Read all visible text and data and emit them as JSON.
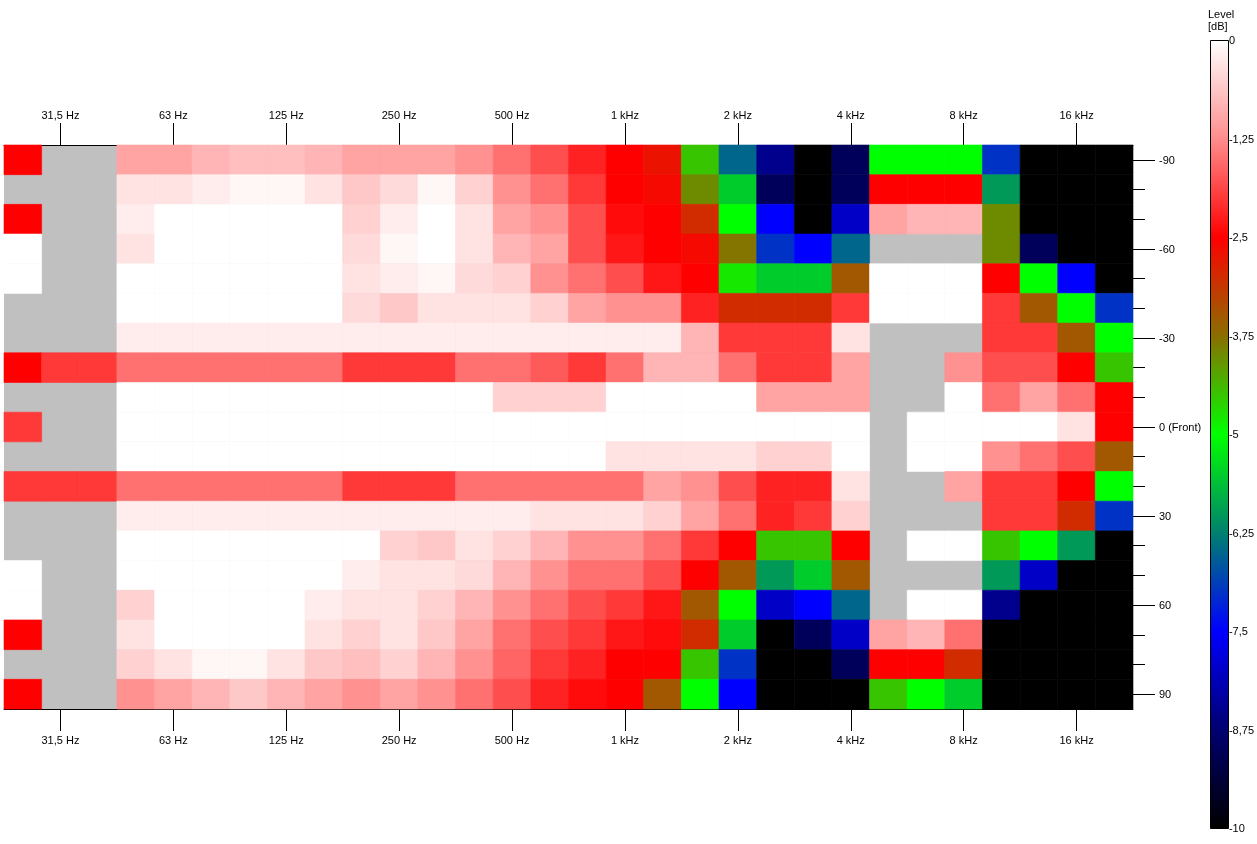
{
  "chart_data": {
    "type": "heatmap",
    "categories": [
      null,
      "31,5 Hz",
      null,
      null,
      "63 Hz",
      null,
      null,
      "125 Hz",
      null,
      null,
      "250 Hz",
      null,
      null,
      "500 Hz",
      null,
      null,
      "1 kHz",
      null,
      null,
      "2 kHz",
      null,
      null,
      "4 kHz",
      null,
      null,
      "8 kHz",
      null,
      null,
      "16 kHz",
      null
    ],
    "y_categories": [
      "-90",
      null,
      null,
      "-60",
      null,
      null,
      "-30",
      null,
      null,
      "0 (Front)",
      null,
      null,
      "30",
      null,
      null,
      "60",
      null,
      null,
      "90"
    ],
    "cells": [
      [
        -2.5,
        null,
        null,
        -1,
        -1,
        -0.8,
        -0.7,
        -0.7,
        -0.8,
        -1,
        -1,
        -1,
        -1.2,
        -1.5,
        -1.8,
        -2.2,
        -2.5,
        -2.7,
        -4.5,
        -6.5,
        -8.5,
        -10,
        -9,
        -5,
        -5,
        -5,
        -7,
        -10,
        -10,
        -10
      ],
      [
        null,
        null,
        null,
        -0.3,
        -0.3,
        -0.2,
        -0.1,
        -0.1,
        -0.3,
        -0.6,
        -0.4,
        -0.1,
        -0.5,
        -1.2,
        -1.5,
        -2,
        -2.5,
        -2.6,
        -4,
        -5.5,
        -9,
        -10,
        -9,
        -2.5,
        -2.5,
        -2.5,
        -6,
        -10,
        -10,
        -10
      ],
      [
        -2.5,
        null,
        null,
        -0.2,
        0,
        0,
        0,
        0,
        0,
        -0.5,
        -0.2,
        0,
        -0.3,
        -1,
        -1.2,
        -1.8,
        -2.4,
        -2.5,
        -3,
        -5,
        -7.5,
        -10,
        -8,
        -1,
        -0.8,
        -0.8,
        -4,
        -10,
        -10,
        -10
      ],
      [
        0,
        null,
        null,
        -0.3,
        0,
        0,
        0,
        0,
        0,
        -0.4,
        -0.1,
        0,
        -0.3,
        -0.8,
        -1,
        -1.8,
        -2.3,
        -2.5,
        -2.6,
        -3.8,
        -7,
        -7.5,
        -6.5,
        null,
        null,
        null,
        -4,
        -9,
        -10,
        -10
      ],
      [
        0,
        null,
        null,
        0,
        0,
        0,
        0,
        0,
        0,
        -0.3,
        -0.2,
        -0.1,
        -0.4,
        -0.5,
        -1.2,
        -1.5,
        -1.8,
        -2.3,
        -2.5,
        -4.8,
        -5.5,
        -5.5,
        -3.5,
        0,
        0,
        0,
        -2.5,
        -5,
        -7.5,
        -10
      ],
      [
        null,
        null,
        null,
        0,
        0,
        0,
        0,
        0,
        0,
        -0.4,
        -0.6,
        -0.3,
        -0.3,
        -0.3,
        -0.5,
        -1,
        -1.2,
        -1.2,
        -2.2,
        -3,
        -3,
        -3,
        -2,
        0,
        0,
        0,
        -2,
        -3.5,
        -5,
        -7
      ],
      [
        null,
        null,
        null,
        -0.2,
        -0.2,
        -0.2,
        -0.2,
        -0.2,
        -0.2,
        -0.2,
        -0.2,
        -0.2,
        -0.2,
        -0.2,
        -0.2,
        -0.2,
        -0.2,
        -0.2,
        -0.8,
        -2,
        -2,
        -2,
        -0.3,
        null,
        null,
        null,
        -2,
        -2,
        -3.5,
        -5
      ],
      [
        -2.5,
        -2,
        -2,
        -1.5,
        -1.5,
        -1.5,
        -1.5,
        -1.5,
        -1.5,
        -2,
        -2,
        -2,
        -1.5,
        -1.5,
        -1.7,
        -2,
        -1.5,
        -0.8,
        -0.8,
        -1.5,
        -2,
        -2,
        -1,
        null,
        null,
        -1.2,
        -1.8,
        -1.8,
        -2.5,
        -4.5
      ],
      [
        null,
        null,
        null,
        0,
        0,
        0,
        0,
        0,
        0,
        0,
        0,
        0,
        0,
        -0.5,
        -0.5,
        -0.5,
        0,
        0,
        0,
        0,
        -1,
        -1,
        -1,
        null,
        null,
        0,
        -1.5,
        -1,
        -1.5,
        -2.5
      ],
      [
        -2,
        null,
        null,
        0,
        0,
        0,
        0,
        0,
        0,
        0,
        0,
        0,
        0,
        0,
        0,
        0,
        0,
        0,
        0,
        0,
        0,
        0,
        0,
        null,
        0,
        0,
        0,
        0,
        -0.3,
        -2.5
      ],
      [
        null,
        null,
        null,
        0,
        0,
        0,
        0,
        0,
        0,
        0,
        0,
        0,
        0,
        0,
        0,
        0,
        -0.3,
        -0.3,
        -0.3,
        -0.3,
        -0.5,
        -0.5,
        0,
        null,
        0,
        0,
        -1.2,
        -1.5,
        -1.8,
        -3.5
      ],
      [
        -2,
        -2,
        -2,
        -1.5,
        -1.5,
        -1.5,
        -1.5,
        -1.5,
        -1.5,
        -2,
        -2,
        -2,
        -1.5,
        -1.5,
        -1.5,
        -1.5,
        -1.5,
        -1,
        -1.2,
        -1.8,
        -2.2,
        -2.2,
        -0.3,
        null,
        null,
        -1,
        -2,
        -2,
        -2.5,
        -5
      ],
      [
        null,
        null,
        null,
        -0.2,
        -0.2,
        -0.2,
        -0.2,
        -0.2,
        -0.2,
        -0.2,
        -0.2,
        -0.2,
        -0.2,
        -0.2,
        -0.3,
        -0.3,
        -0.3,
        -0.5,
        -1,
        -1.5,
        -2.2,
        -2,
        -0.5,
        null,
        null,
        null,
        -2,
        -2,
        -3,
        -7
      ],
      [
        null,
        null,
        null,
        0,
        0,
        0,
        0,
        0,
        0,
        0,
        -0.5,
        -0.6,
        -0.3,
        -0.5,
        -0.8,
        -1.2,
        -1.2,
        -1.5,
        -2,
        -2.5,
        -4.5,
        -4.5,
        -2.5,
        null,
        0,
        0,
        -4.5,
        -5,
        -6,
        -10
      ],
      [
        0,
        null,
        null,
        0,
        0,
        0,
        0,
        0,
        0,
        -0.2,
        -0.3,
        -0.3,
        -0.4,
        -0.8,
        -1.2,
        -1.5,
        -1.5,
        -1.8,
        -2.5,
        -3.5,
        -6,
        -5.5,
        -3.5,
        null,
        null,
        null,
        -6,
        -8,
        -10,
        -10
      ],
      [
        0,
        null,
        null,
        -0.5,
        0,
        0,
        0,
        0,
        -0.2,
        -0.3,
        -0.3,
        -0.5,
        -0.8,
        -1.2,
        -1.5,
        -1.8,
        -2,
        -2.3,
        -3.5,
        -5,
        -8,
        -7.5,
        -6.5,
        null,
        0,
        0,
        -8.5,
        -10,
        -10,
        -10
      ],
      [
        -2.5,
        null,
        null,
        -0.3,
        0,
        0,
        0,
        0,
        -0.3,
        -0.5,
        -0.3,
        -0.6,
        -1,
        -1.5,
        -1.8,
        -2,
        -2.3,
        -2.4,
        -3,
        -5.5,
        -10,
        -9,
        -8,
        -1,
        -0.8,
        -1.5,
        -10,
        -10,
        -10,
        -10
      ],
      [
        null,
        null,
        null,
        -0.5,
        -0.3,
        -0.1,
        -0.1,
        -0.3,
        -0.6,
        -0.7,
        -0.5,
        -0.8,
        -1.2,
        -1.6,
        -2,
        -2.2,
        -2.5,
        -2.5,
        -4.5,
        -7,
        -10,
        -10,
        -9,
        -2.5,
        -2.5,
        -3,
        -10,
        -10,
        -10,
        -10
      ],
      [
        -2.5,
        null,
        null,
        -1.2,
        -1,
        -0.8,
        -0.6,
        -0.8,
        -1,
        -1.2,
        -1,
        -1.2,
        -1.5,
        -1.8,
        -2.2,
        -2.4,
        -2.5,
        -3.5,
        -5,
        -7.5,
        -10,
        -10,
        -10,
        -4.5,
        -5,
        -5.5,
        -10,
        -10,
        -10,
        -10
      ]
    ],
    "clim": [
      -10,
      0
    ],
    "cticks": [
      0,
      {
        "value": -1.25,
        "label": "-1,25"
      },
      {
        "value": -2.5,
        "label": "-2,5"
      },
      {
        "value": -3.75,
        "label": "-3,75"
      },
      -5,
      {
        "value": -6.25,
        "label": "-6,25"
      },
      {
        "value": -7.5,
        "label": "-7,5"
      },
      {
        "value": -8.75,
        "label": "-8,75"
      },
      -10
    ],
    "clabel": "Level [dB]"
  }
}
